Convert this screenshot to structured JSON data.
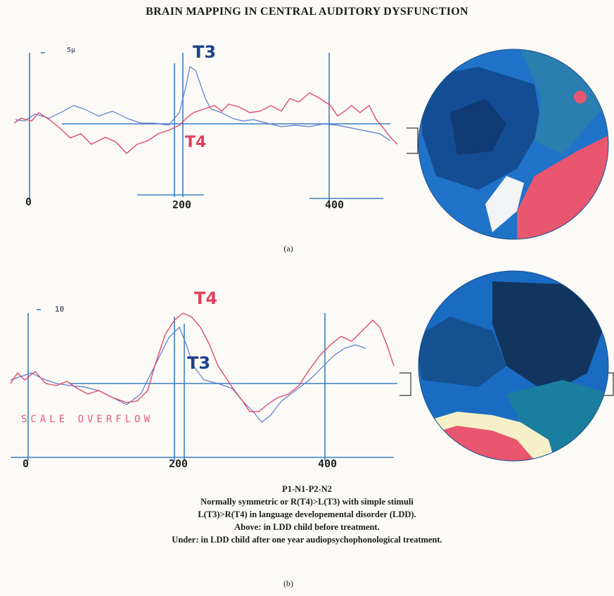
{
  "title": "BRAIN MAPPING IN CENTRAL AUDITORY DYSFUNCTION",
  "panel_a": {
    "caption": "(a)",
    "scale_label": "5µ",
    "electrode_top": "T3",
    "electrode_bottom": "T4",
    "x_ticks": [
      "0",
      "200",
      "400"
    ],
    "colors": {
      "T3_trace": "#5b78d6",
      "T4_trace": "#e04a6c",
      "map_blue": "#1f73c8",
      "map_dark": "#144d93",
      "map_pink": "#e8566f"
    }
  },
  "panel_b": {
    "caption": "(b)",
    "scale_label": "10",
    "electrode_top": "T4",
    "electrode_bottom": "T3",
    "overflow_text": "SCALE OVERFLOW",
    "x_ticks": [
      "0",
      "200",
      "400"
    ],
    "colors": {
      "T3_trace": "#5b78d6",
      "T4_trace": "#e04a6c",
      "map_blue": "#1a6cc2",
      "map_dark": "#12355f",
      "map_teal": "#1a7f9e",
      "map_cream": "#f5f0c8",
      "map_pink": "#e8566f"
    }
  },
  "notes": [
    "P1-N1-P2-N2",
    "Normally symmetric or R(T4)>L(T3) with simple stimuli",
    "L(T3)>R(T4) in language developemental disorder (LDD).",
    "Above: in LDD child before treatment.",
    "Under: in LDD child after one year audiopsychophonological treatment."
  ]
}
